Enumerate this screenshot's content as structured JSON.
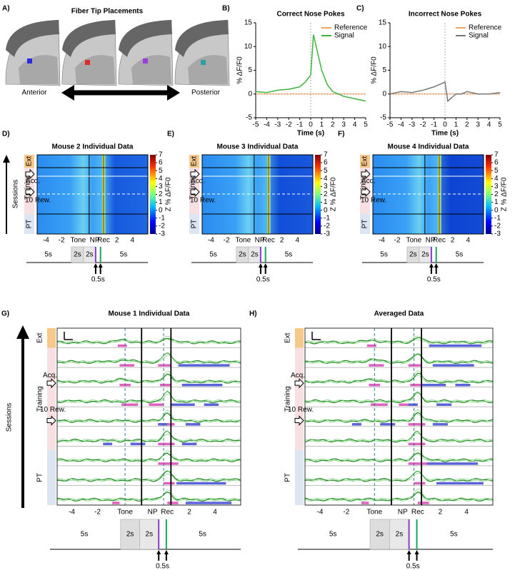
{
  "panel_a": {
    "label": "A)",
    "title": "Fiber Tip Placements",
    "anterior": "Anterior",
    "posterior": "Posterior"
  },
  "chart_data": [
    {
      "type": "line",
      "label": "B)",
      "title": "Correct Nose Pokes",
      "x_label": "Time (s)",
      "y_label": "% ΔF/F0",
      "x": [
        -5,
        -4,
        -3,
        -2,
        -1,
        -0.5,
        0,
        0.25,
        0.5,
        1,
        1.5,
        2,
        3,
        4,
        5
      ],
      "series": [
        {
          "name": "Reference",
          "color": "#f4a460",
          "values": [
            0,
            0,
            0,
            0,
            0,
            0,
            0,
            0,
            0,
            0,
            0,
            0,
            0,
            0,
            0
          ]
        },
        {
          "name": "Signal",
          "color": "#3cb43c",
          "values": [
            0.5,
            0.3,
            0.8,
            1,
            1.5,
            2.5,
            4,
            12.5,
            10,
            5,
            2,
            0.5,
            -0.5,
            -1,
            -1.5
          ]
        }
      ],
      "xlim": [
        -5,
        5
      ],
      "xticks": [
        -5,
        -4,
        -3,
        -2,
        -1,
        0,
        1,
        2,
        3,
        4,
        5
      ],
      "ylim": [
        -5,
        15
      ],
      "yticks": [
        -5,
        0,
        5,
        10,
        15
      ]
    },
    {
      "type": "line",
      "label": "C)",
      "title": "Incorrect Nose Pokes",
      "x_label": "Time (s)",
      "y_label": "% ΔF/F0",
      "x": [
        -5,
        -4,
        -3,
        -2,
        -1,
        -0.5,
        0,
        0.25,
        0.5,
        1,
        1.5,
        2,
        3,
        4,
        5
      ],
      "series": [
        {
          "name": "Reference",
          "color": "#f4a460",
          "values": [
            0,
            0,
            0,
            0,
            0,
            0,
            0,
            0,
            0,
            0,
            0,
            0,
            0,
            0,
            0
          ]
        },
        {
          "name": "Signal",
          "color": "#777777",
          "values": [
            0,
            0.5,
            0.3,
            0.8,
            1.5,
            2,
            2.5,
            -1.5,
            -1,
            0,
            0,
            0.5,
            0,
            0,
            0.3
          ]
        }
      ],
      "xlim": [
        -5,
        5
      ],
      "xticks": [
        -5,
        -4,
        -3,
        -2,
        -1,
        0,
        1,
        2,
        3,
        4,
        5
      ],
      "ylim": [
        -5,
        15
      ],
      "yticks": [
        -5,
        0,
        5,
        10,
        15
      ]
    }
  ],
  "heatmap_panels": [
    {
      "label": "D)",
      "title": "Mouse 2 Individual Data"
    },
    {
      "label": "E)",
      "title": "Mouse 3 Individual Data"
    },
    {
      "label": "F)",
      "title": "Mouse 4 Individual Data"
    }
  ],
  "trace_panels": [
    {
      "label": "G)",
      "title": "Mouse 1 Individual Data"
    },
    {
      "label": "H)",
      "title": "Averaged Data"
    }
  ],
  "colorbar": {
    "label": "Z % ΔF/F0",
    "ticks": [
      7,
      6,
      5,
      4,
      3,
      2,
      1,
      0,
      -1,
      -2,
      -3
    ]
  },
  "rows": {
    "ext": "Ext",
    "training": "Training",
    "acq": "Acq.",
    "rew": "10 Rew.",
    "pt": "PT",
    "sessions": "Sessions"
  },
  "time_axis": {
    "ticks": [
      -4,
      -2,
      "Tone",
      "NP",
      "Rec",
      2,
      4
    ]
  },
  "timeline": {
    "segments": [
      "5s",
      "2s",
      "2s",
      "5s"
    ],
    "delay": "0.5s"
  }
}
